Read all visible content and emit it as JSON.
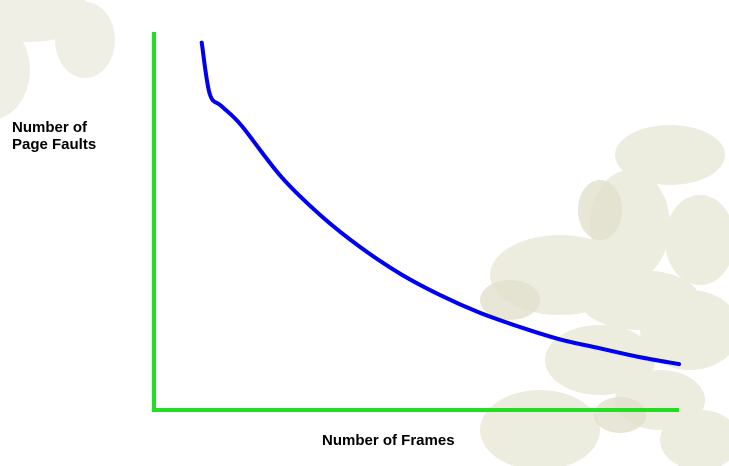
{
  "chart_data": {
    "type": "line",
    "title": "",
    "xlabel": "Number of Frames",
    "ylabel_lines": [
      "Number of",
      "Page Faults"
    ],
    "axis_color": "#22dd22",
    "grid": false,
    "series": [
      {
        "color": "#0000ee",
        "x": [
          1,
          1.2,
          1.5,
          2,
          3,
          4,
          5,
          6,
          7,
          8,
          9,
          10,
          11,
          12,
          13
        ],
        "y": [
          10,
          8.55,
          8.2,
          7.65,
          6.2,
          5.1,
          4.2,
          3.45,
          2.85,
          2.35,
          1.95,
          1.6,
          1.35,
          1.1,
          0.9
        ]
      }
    ],
    "xlim": [
      -0.2,
      13
    ],
    "ylim": [
      -0.4,
      10.3
    ]
  }
}
